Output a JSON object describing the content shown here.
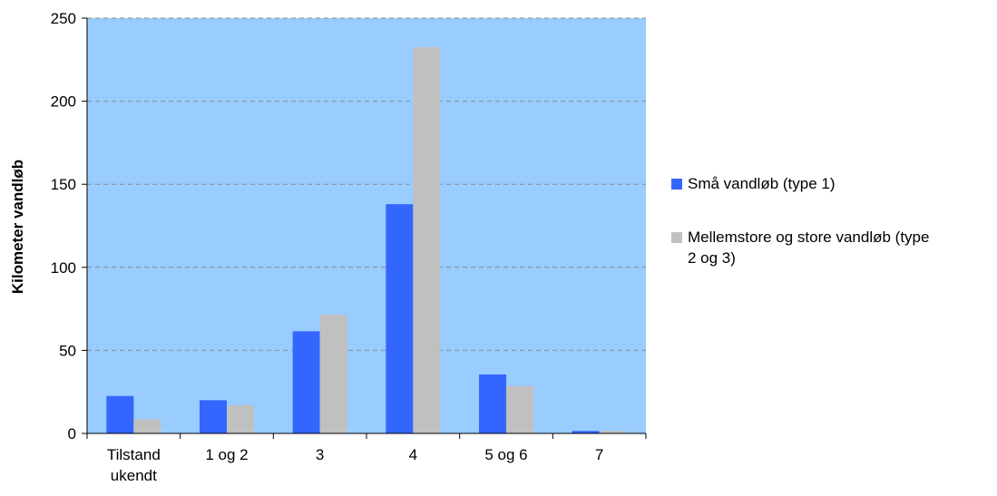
{
  "chart_data": {
    "type": "bar",
    "title": "",
    "xlabel": "",
    "ylabel": "Kilometer vandløb",
    "ylim": [
      0,
      250
    ],
    "yticks": [
      0,
      50,
      100,
      150,
      200,
      250
    ],
    "grid": true,
    "legend_position": "right",
    "plot_background": "#99CCFF",
    "categories": [
      [
        "Tilstand",
        "ukendt"
      ],
      [
        "1 og 2"
      ],
      [
        "3"
      ],
      [
        "4"
      ],
      [
        "5 og 6"
      ],
      [
        "7"
      ]
    ],
    "series": [
      {
        "name": "Små vandløb (type 1)",
        "legend_lines": [
          "Små vandløb (type 1)"
        ],
        "color": "#3366FF",
        "values": [
          22.5,
          20,
          61.5,
          138,
          35.5,
          1.5
        ]
      },
      {
        "name": "Mellemstore og store vandløb (type 2 og 3)",
        "legend_lines": [
          "Mellemstore og store vandløb (type",
          "2 og 3)"
        ],
        "color": "#C0C0C0",
        "values": [
          8.5,
          17,
          71.5,
          232.5,
          28.5,
          1.5
        ]
      }
    ]
  }
}
